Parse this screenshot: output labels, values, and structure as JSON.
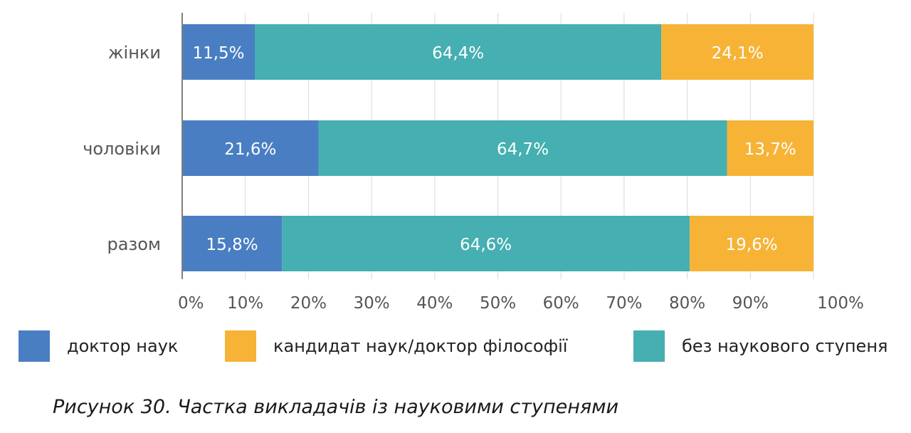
{
  "chart_data": {
    "type": "bar",
    "orientation": "horizontal",
    "stacked": true,
    "percent": true,
    "categories": [
      "жінки",
      "чоловіки",
      "разом"
    ],
    "series": [
      {
        "name": "доктор наук",
        "color": "#4a7ec3",
        "values": [
          11.5,
          21.6,
          15.8
        ],
        "labels": [
          "11,5%",
          "21,6%",
          "15,8%"
        ]
      },
      {
        "name": "без наукового ступеня",
        "color": "#45afb1",
        "values": [
          64.4,
          64.7,
          64.6
        ],
        "labels": [
          "64,4%",
          "64,7%",
          "64,6%"
        ]
      },
      {
        "name": "кандидат наук/доктор філософії",
        "color": "#f6b336",
        "values": [
          24.1,
          13.7,
          19.6
        ],
        "labels": [
          "24,1%",
          "13,7%",
          "19,6%"
        ]
      }
    ],
    "xlim": [
      0,
      100
    ],
    "ticks": [
      "0%",
      "10%",
      "20%",
      "30%",
      "40%",
      "50%",
      "60%",
      "70%",
      "80%",
      "90%",
      "100%"
    ],
    "grid": true,
    "legend_position": "bottom"
  },
  "legend": [
    {
      "label": "доктор наук",
      "color": "#4a7ec3"
    },
    {
      "label": "кандидат наук/доктор філософії",
      "color": "#f6b336"
    },
    {
      "label": "без наукового ступеня",
      "color": "#45afb1"
    }
  ],
  "caption": "Рисунок 30. Частка викладачів із науковими ступенями"
}
